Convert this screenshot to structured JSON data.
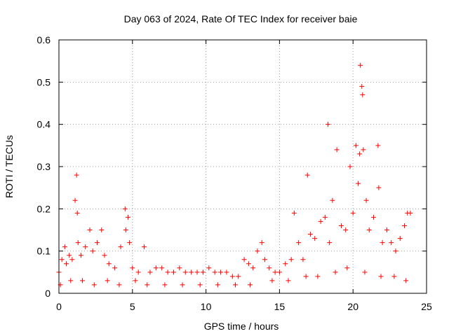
{
  "chart_data": {
    "type": "scatter",
    "title": "Day 063 of 2024, Rate Of TEC Index for receiver baie",
    "xlabel": "GPS time / hours",
    "ylabel": "ROTI / TECUs",
    "xlim": [
      0,
      25
    ],
    "ylim": [
      0,
      0.6
    ],
    "xticks": [
      0,
      5,
      10,
      15,
      20,
      25
    ],
    "yticks": [
      0,
      0.1,
      0.2,
      0.3,
      0.4,
      0.5,
      0.6
    ],
    "xtick_labels": [
      "0",
      "5",
      "10",
      "15",
      "20",
      "25"
    ],
    "ytick_labels": [
      "0",
      "0.1",
      "0.2",
      "0.3",
      "0.4",
      "0.5",
      "0.6"
    ],
    "grid": true,
    "marker": "+",
    "color": "#ff0000",
    "series": [
      {
        "name": "ROTI",
        "envelope_note": "dense cloud; points listed are representative readings including peaks",
        "x": [
          0.0,
          0.2,
          0.4,
          0.5,
          0.7,
          0.9,
          1.1,
          1.2,
          1.25,
          1.3,
          1.5,
          1.8,
          2.1,
          2.3,
          2.6,
          2.9,
          3.1,
          3.4,
          3.8,
          4.2,
          4.5,
          4.55,
          4.7,
          4.8,
          5.0,
          5.4,
          5.8,
          6.2,
          6.6,
          7.0,
          7.4,
          7.8,
          8.2,
          8.6,
          9.0,
          9.4,
          9.8,
          10.2,
          10.6,
          11.0,
          11.4,
          11.8,
          12.2,
          12.6,
          12.9,
          13.2,
          13.5,
          13.8,
          14.0,
          14.3,
          14.7,
          15.0,
          15.4,
          15.8,
          16.0,
          16.3,
          16.6,
          16.9,
          17.1,
          17.4,
          17.8,
          18.1,
          18.3,
          18.4,
          18.6,
          18.9,
          19.2,
          19.5,
          19.8,
          20.0,
          20.2,
          20.35,
          20.45,
          20.5,
          20.6,
          20.65,
          20.7,
          20.9,
          21.1,
          21.4,
          21.7,
          21.75,
          22.0,
          22.3,
          22.6,
          22.9,
          23.2,
          23.5,
          23.7,
          23.9,
          0.1,
          0.8,
          1.6,
          2.4,
          3.3,
          4.1,
          5.2,
          6.0,
          7.2,
          8.4,
          9.6,
          10.8,
          12.0,
          13.0,
          14.5,
          15.6,
          16.8,
          17.6,
          18.8,
          19.6,
          20.8,
          21.9,
          22.8,
          23.6
        ],
        "y": [
          0.05,
          0.08,
          0.11,
          0.07,
          0.09,
          0.08,
          0.22,
          0.28,
          0.19,
          0.12,
          0.09,
          0.11,
          0.15,
          0.1,
          0.12,
          0.15,
          0.09,
          0.07,
          0.06,
          0.11,
          0.2,
          0.15,
          0.18,
          0.12,
          0.06,
          0.05,
          0.11,
          0.05,
          0.06,
          0.06,
          0.05,
          0.05,
          0.06,
          0.05,
          0.05,
          0.05,
          0.05,
          0.06,
          0.05,
          0.05,
          0.05,
          0.04,
          0.04,
          0.08,
          0.07,
          0.06,
          0.1,
          0.12,
          0.08,
          0.06,
          0.05,
          0.05,
          0.07,
          0.08,
          0.19,
          0.12,
          0.08,
          0.28,
          0.14,
          0.13,
          0.17,
          0.18,
          0.4,
          0.12,
          0.22,
          0.34,
          0.16,
          0.15,
          0.3,
          0.19,
          0.35,
          0.26,
          0.33,
          0.54,
          0.49,
          0.47,
          0.34,
          0.22,
          0.15,
          0.18,
          0.35,
          0.25,
          0.12,
          0.15,
          0.12,
          0.1,
          0.13,
          0.16,
          0.19,
          0.19,
          0.02,
          0.03,
          0.03,
          0.02,
          0.03,
          0.02,
          0.03,
          0.02,
          0.02,
          0.02,
          0.02,
          0.02,
          0.02,
          0.02,
          0.03,
          0.03,
          0.04,
          0.04,
          0.05,
          0.06,
          0.05,
          0.04,
          0.04,
          0.03
        ]
      }
    ]
  }
}
